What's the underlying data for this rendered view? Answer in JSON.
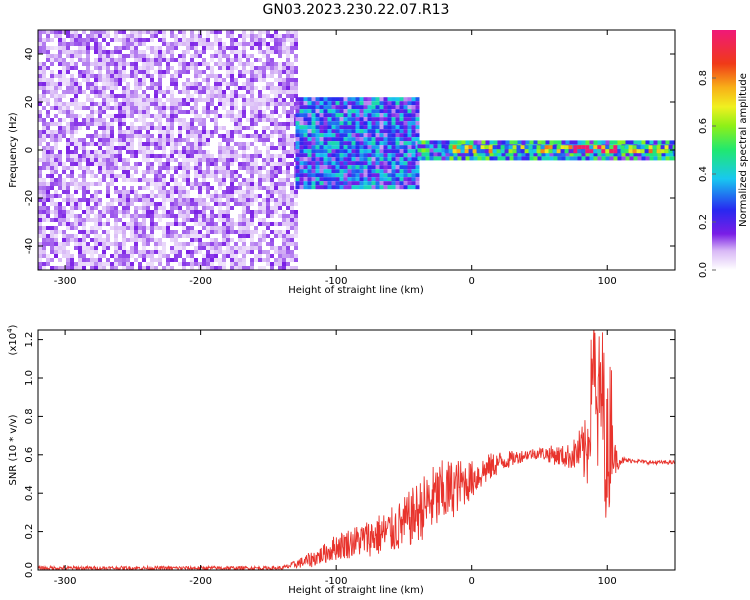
{
  "title": "GN03.2023.230.22.07.R13",
  "colors": {
    "snr_line": "#e8332c",
    "frame": "#000000",
    "purple": "#7a2be2",
    "light_purple": "#dcc4f7",
    "navy": "#1a1aa8"
  },
  "chart_data": [
    {
      "type": "heatmap",
      "title": "GN03.2023.230.22.07.R13",
      "xlabel": "Height of straight line (km)",
      "ylabel": "Frequency (Hz)",
      "xlim": [
        -320,
        150
      ],
      "ylim": [
        -50,
        50
      ],
      "x_ticks": [
        -300,
        -200,
        -100,
        0,
        100
      ],
      "y_ticks": [
        -40,
        -20,
        0,
        20,
        40
      ],
      "colorbar": {
        "label": "Normalized spectral amplitude",
        "range": [
          0.0,
          1.0
        ],
        "ticks": [
          0.0,
          0.2,
          0.4,
          0.6,
          0.8
        ]
      },
      "regions": [
        {
          "x_range": [
            -320,
            -130
          ],
          "freq_range": [
            -50,
            50
          ],
          "amplitude": 0.1
        },
        {
          "x_range": [
            -130,
            -40
          ],
          "freq_range": [
            -15,
            22
          ],
          "amplitude": 0.3
        },
        {
          "x_range": [
            -40,
            150
          ],
          "freq_range": [
            -3,
            4
          ],
          "amplitude": 0.4
        },
        {
          "x_range": [
            -20,
            150
          ],
          "freq_range": [
            -1,
            2
          ],
          "amplitude": 0.55
        },
        {
          "x_range": [
            75,
            105
          ],
          "freq_range": [
            -1,
            2
          ],
          "amplitude": 0.95
        }
      ]
    },
    {
      "type": "line",
      "xlabel": "Height of straight line (km)",
      "ylabel": "SNR (10 * v/v)",
      "y_multiplier": "(x10",
      "y_multiplier_exp": "4",
      "y_multiplier_close": ")",
      "xlim": [
        -320,
        150
      ],
      "ylim": [
        0,
        1.25
      ],
      "x_ticks": [
        -300,
        -200,
        -100,
        0,
        100
      ],
      "y_ticks": [
        0.0,
        0.2,
        0.4,
        0.6,
        0.8,
        1.0,
        1.2
      ],
      "series": [
        {
          "x": [
            -320,
            -140,
            -130,
            -120,
            -110,
            -100,
            -90,
            -80,
            -70,
            -60,
            -50,
            -40,
            -30,
            -20,
            -10,
            0,
            10,
            20,
            30,
            40,
            50,
            60,
            70,
            75,
            80,
            85,
            88,
            90,
            92,
            95,
            98,
            100,
            103,
            105,
            110,
            120,
            130,
            140,
            150
          ],
          "y": [
            0.01,
            0.01,
            0.03,
            0.05,
            0.08,
            0.12,
            0.14,
            0.16,
            0.18,
            0.2,
            0.24,
            0.3,
            0.36,
            0.4,
            0.44,
            0.47,
            0.52,
            0.56,
            0.58,
            0.6,
            0.61,
            0.6,
            0.59,
            0.6,
            0.62,
            0.6,
            0.9,
            1.25,
            0.7,
            0.95,
            0.8,
            0.5,
            0.85,
            0.58,
            0.57,
            0.57,
            0.56,
            0.56,
            0.56
          ],
          "noise": [
            0.01,
            0.01,
            0.02,
            0.04,
            0.05,
            0.07,
            0.08,
            0.09,
            0.11,
            0.12,
            0.14,
            0.16,
            0.18,
            0.18,
            0.14,
            0.1,
            0.08,
            0.06,
            0.04,
            0.03,
            0.03,
            0.05,
            0.06,
            0.08,
            0.12,
            0.2,
            0.3,
            0.25,
            0.35,
            0.4,
            0.4,
            0.45,
            0.35,
            0.1,
            0.02,
            0.01,
            0.01,
            0.01,
            0.01
          ]
        }
      ]
    }
  ]
}
